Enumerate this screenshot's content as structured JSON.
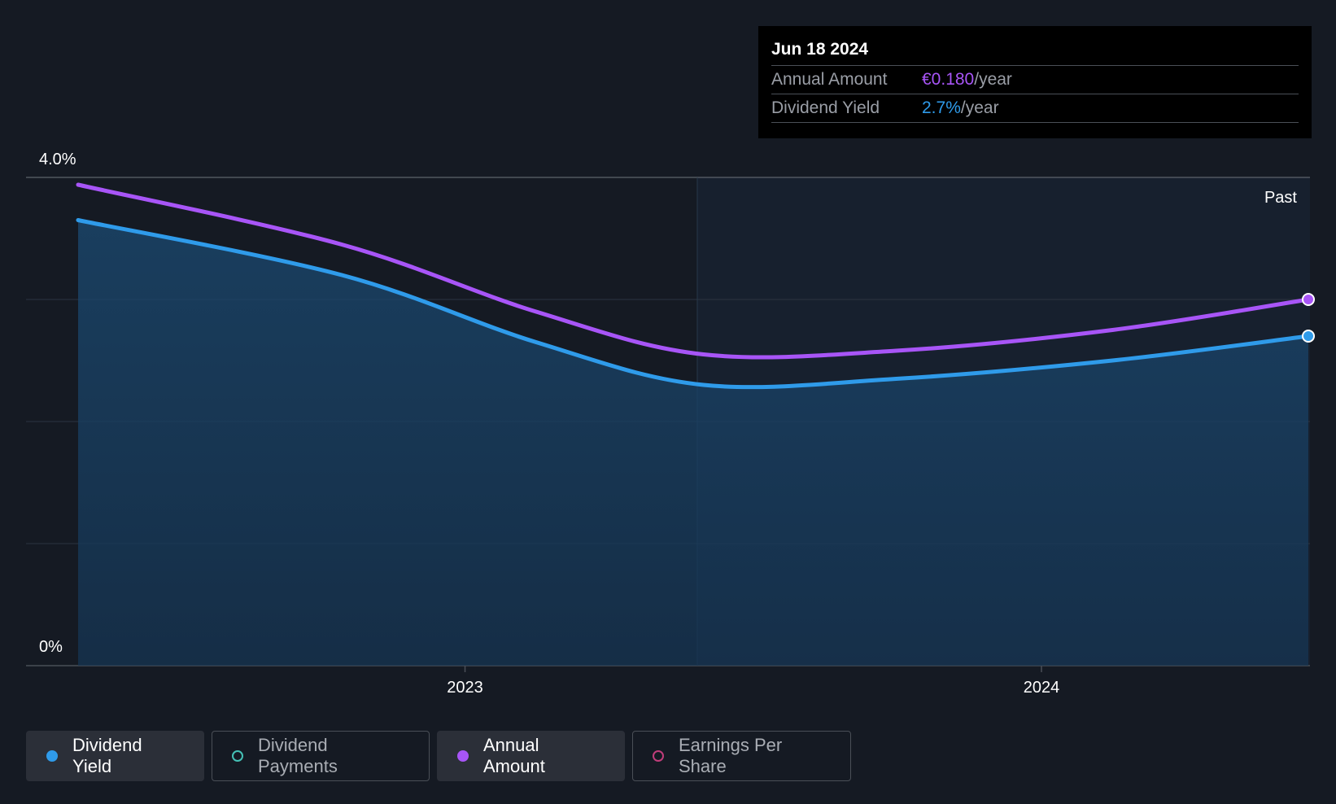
{
  "chart_data": {
    "type": "area",
    "x": [
      "2022-05-01",
      "2022-10-15",
      "2023-02-15",
      "2023-06-01",
      "2023-10-01",
      "2024-02-15",
      "2024-06-18"
    ],
    "x_ticks": [
      "2023",
      "2024"
    ],
    "y_ticks": [
      "4.0%",
      "0%"
    ],
    "ylim": [
      0,
      4.0
    ],
    "series": [
      {
        "name": "Dividend Yield",
        "color": "#2f9bea",
        "fill": true,
        "values": [
          3.65,
          3.2,
          2.65,
          2.3,
          2.35,
          2.5,
          2.7
        ]
      },
      {
        "name": "Annual Amount",
        "color": "#a855f7",
        "fill": false,
        "values": [
          3.94,
          3.45,
          2.9,
          2.55,
          2.58,
          2.75,
          3.0
        ]
      }
    ],
    "past_label": "Past",
    "grid": true
  },
  "tooltip": {
    "date": "Jun 18 2024",
    "rows": [
      {
        "label": "Annual Amount",
        "value": "€0.180",
        "unit": "/year"
      },
      {
        "label": "Dividend Yield",
        "value": "2.7%",
        "unit": "/year"
      }
    ]
  },
  "legend": [
    {
      "label": "Dividend Yield",
      "color": "#2f9bea",
      "filled": true,
      "active": true
    },
    {
      "label": "Dividend Payments",
      "color": "#45c1b6",
      "filled": false,
      "active": false
    },
    {
      "label": "Annual Amount",
      "color": "#a855f7",
      "filled": true,
      "active": true
    },
    {
      "label": "Earnings Per Share",
      "color": "#c03d7a",
      "filled": false,
      "active": false
    }
  ]
}
